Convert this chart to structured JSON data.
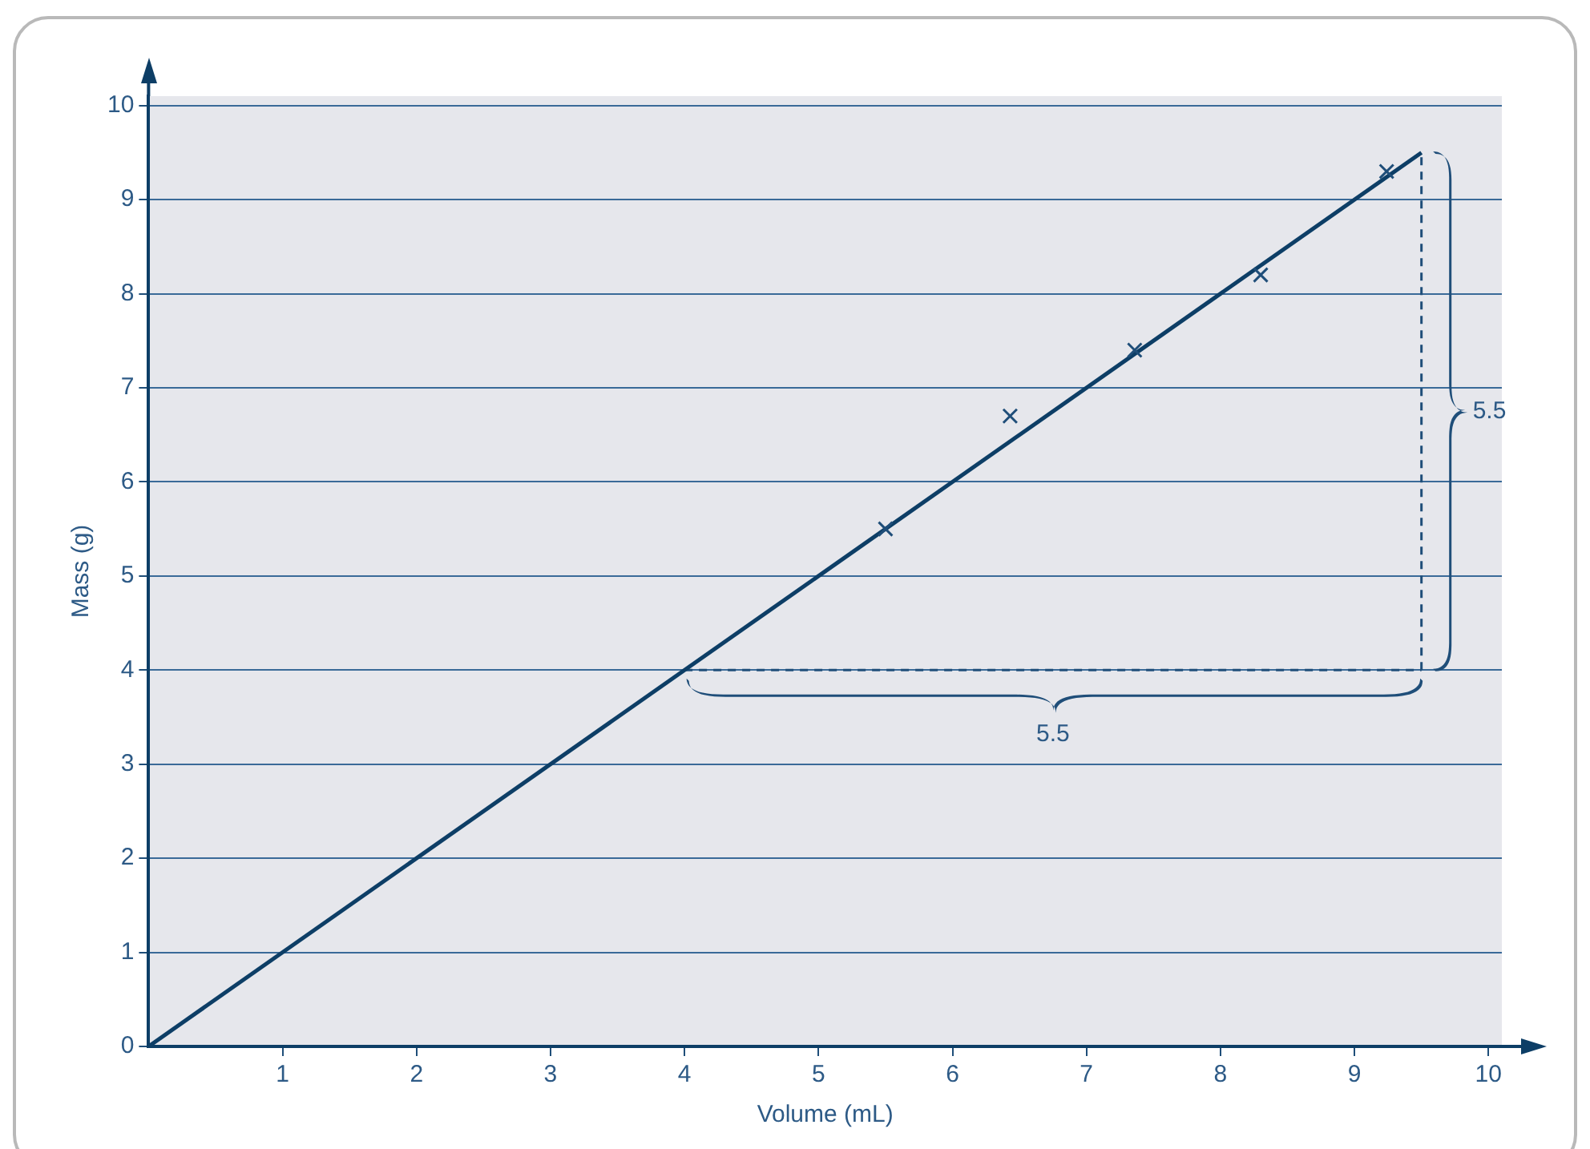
{
  "chart_data": {
    "type": "scatter",
    "xlabel": "Volume (mL)",
    "ylabel": "Mass (g)",
    "xlim": [
      0,
      10.1
    ],
    "ylim": [
      0,
      10.1
    ],
    "xticks": [
      1,
      2,
      3,
      4,
      5,
      6,
      7,
      8,
      9,
      10
    ],
    "yticks": [
      0,
      1,
      2,
      3,
      4,
      5,
      6,
      7,
      8,
      9,
      10
    ],
    "grid": "y",
    "legend": false,
    "series": [
      {
        "x": [
          5.5,
          6.43,
          7.36,
          8.3,
          9.24
        ],
        "values": [
          5.5,
          6.7,
          7.4,
          8.2,
          9.3
        ],
        "color": "#1f4e79",
        "marker": "cross"
      },
      {
        "type": "line",
        "x": [
          0,
          9.5
        ],
        "values": [
          0,
          9.5
        ],
        "color": "#0d3e66",
        "marker": "none",
        "line_style": "solid"
      },
      {
        "type": "line",
        "x": [
          4,
          9.5
        ],
        "values": [
          4,
          4
        ],
        "color": "#1f4e79",
        "marker": "none",
        "line_style": "dashed"
      },
      {
        "type": "line",
        "x": [
          9.5,
          9.5
        ],
        "values": [
          4,
          9.5
        ],
        "color": "#1f4e79",
        "marker": "none",
        "line_style": "dashed"
      }
    ],
    "annotations": [
      "5.5",
      "5.5"
    ]
  }
}
